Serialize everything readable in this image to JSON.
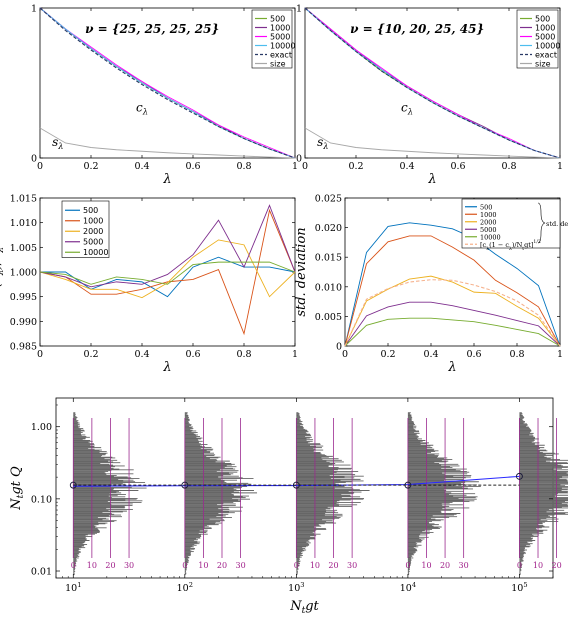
{
  "chart_data": [
    {
      "id": "p1",
      "type": "line",
      "title": "ν = {25, 25, 25, 25}",
      "xlabel": "λ",
      "ylabel": "",
      "xlim": [
        0,
        1
      ],
      "ylim": [
        0,
        1
      ],
      "x_ticks": [
        "0",
        "0.2",
        "0.4",
        "0.6",
        "0.8",
        "1"
      ],
      "y_ticks": [
        "0",
        "1"
      ],
      "grid": false,
      "legend": "top-right",
      "curve_labels": [
        "c_λ",
        "s_λ"
      ],
      "x": [
        0,
        0.1,
        0.2,
        0.3,
        0.4,
        0.5,
        0.6,
        0.7,
        0.8,
        0.9,
        1.0
      ],
      "series": [
        {
          "name": "500",
          "color": "#77ac30",
          "values": [
            1.0,
            0.86,
            0.73,
            0.61,
            0.5,
            0.4,
            0.31,
            0.21,
            0.13,
            0.06,
            0.0
          ]
        },
        {
          "name": "1000",
          "color": "#7e2f8e",
          "values": [
            1.0,
            0.86,
            0.73,
            0.61,
            0.51,
            0.4,
            0.31,
            0.22,
            0.13,
            0.06,
            0.0
          ]
        },
        {
          "name": "5000",
          "color": "#ff00ff",
          "values": [
            1.0,
            0.86,
            0.74,
            0.62,
            0.51,
            0.41,
            0.32,
            0.22,
            0.14,
            0.07,
            0.0
          ]
        },
        {
          "name": "10000",
          "color": "#4dbeee",
          "values": [
            1.0,
            0.86,
            0.73,
            0.61,
            0.5,
            0.4,
            0.31,
            0.21,
            0.13,
            0.06,
            0.0
          ]
        },
        {
          "name": "exact",
          "color": "#2a3a66",
          "dash": true,
          "values": [
            1.0,
            0.85,
            0.72,
            0.6,
            0.49,
            0.39,
            0.3,
            0.21,
            0.13,
            0.06,
            0.0
          ]
        },
        {
          "name": "size",
          "color": "#a8a8a8",
          "values": [
            0.2,
            0.1,
            0.07,
            0.055,
            0.045,
            0.035,
            0.027,
            0.02,
            0.013,
            0.006,
            0.0
          ]
        }
      ]
    },
    {
      "id": "p2",
      "type": "line",
      "title": "ν = {10, 20, 25, 45}",
      "xlabel": "λ",
      "ylabel": "",
      "xlim": [
        0,
        1
      ],
      "ylim": [
        0,
        1
      ],
      "x_ticks": [
        "0",
        "0.2",
        "0.4",
        "0.6",
        "0.8",
        "1"
      ],
      "y_ticks": [
        "0",
        "1"
      ],
      "grid": false,
      "legend": "top-right",
      "curve_labels": [
        "c_λ",
        "s_λ"
      ],
      "x": [
        0,
        0.1,
        0.2,
        0.3,
        0.4,
        0.5,
        0.6,
        0.7,
        0.8,
        0.9,
        1.0
      ],
      "series": [
        {
          "name": "500",
          "color": "#77ac30",
          "values": [
            1.0,
            0.85,
            0.71,
            0.58,
            0.47,
            0.37,
            0.28,
            0.2,
            0.12,
            0.05,
            0.0
          ]
        },
        {
          "name": "1000",
          "color": "#7e2f8e",
          "values": [
            1.0,
            0.86,
            0.72,
            0.59,
            0.48,
            0.38,
            0.29,
            0.21,
            0.12,
            0.05,
            0.0
          ]
        },
        {
          "name": "5000",
          "color": "#ff00ff",
          "values": [
            1.0,
            0.86,
            0.72,
            0.6,
            0.48,
            0.38,
            0.29,
            0.2,
            0.13,
            0.05,
            0.0
          ]
        },
        {
          "name": "10000",
          "color": "#4dbeee",
          "values": [
            1.0,
            0.85,
            0.71,
            0.59,
            0.47,
            0.37,
            0.28,
            0.2,
            0.12,
            0.05,
            0.0
          ]
        },
        {
          "name": "exact",
          "color": "#2a3a66",
          "dash": true,
          "values": [
            1.0,
            0.85,
            0.71,
            0.58,
            0.47,
            0.37,
            0.28,
            0.2,
            0.12,
            0.05,
            0.0
          ]
        },
        {
          "name": "size",
          "color": "#a8a8a8",
          "values": [
            0.2,
            0.1,
            0.07,
            0.055,
            0.045,
            0.035,
            0.027,
            0.02,
            0.013,
            0.006,
            0.0
          ]
        }
      ]
    },
    {
      "id": "p3",
      "type": "line",
      "title": "",
      "xlabel": "λ",
      "ylabel": "E(ĉ_λ)/c_λ",
      "xlim": [
        0,
        1
      ],
      "ylim": [
        0.985,
        1.015
      ],
      "x_ticks": [
        "0",
        "0.2",
        "0.4",
        "0.6",
        "0.8",
        "1"
      ],
      "y_ticks": [
        "0.985",
        "0.990",
        "0.995",
        "1.000",
        "1.005",
        "1.010",
        "1.015"
      ],
      "grid": false,
      "legend": "top-left",
      "x": [
        0,
        0.1,
        0.2,
        0.3,
        0.4,
        0.5,
        0.6,
        0.7,
        0.8,
        0.9,
        1.0
      ],
      "series": [
        {
          "name": "500",
          "color": "#0072bd",
          "values": [
            1.0,
            1.0,
            0.9965,
            0.9985,
            0.998,
            0.995,
            1.001,
            1.003,
            1.001,
            1.001,
            1.0
          ]
        },
        {
          "name": "1000",
          "color": "#d95319",
          "values": [
            1.0,
            0.999,
            0.9955,
            0.9955,
            0.9965,
            0.998,
            0.9985,
            1.0005,
            0.9875,
            1.0125,
            1.0
          ]
        },
        {
          "name": "2000",
          "color": "#edb120",
          "values": [
            1.0,
            0.9985,
            0.9965,
            0.9965,
            0.9948,
            0.9978,
            1.003,
            1.0065,
            1.0055,
            0.995,
            1.0
          ]
        },
        {
          "name": "5000",
          "color": "#7e2f8e",
          "values": [
            1.0,
            0.999,
            0.997,
            0.998,
            0.9975,
            0.9995,
            1.0035,
            1.0105,
            1.001,
            1.0135,
            1.0
          ]
        },
        {
          "name": "10000",
          "color": "#77ac30",
          "values": [
            1.0,
            0.9995,
            0.9975,
            0.999,
            0.9985,
            0.9975,
            1.0015,
            1.002,
            1.002,
            1.002,
            1.0
          ]
        }
      ]
    },
    {
      "id": "p4",
      "type": "line",
      "title": "",
      "xlabel": "λ",
      "ylabel": "std. deviation",
      "xlim": [
        0,
        1
      ],
      "ylim": [
        0,
        0.025
      ],
      "x_ticks": [
        "0",
        "0.2",
        "0.4",
        "0.6",
        "0.8",
        "1"
      ],
      "y_ticks": [
        "0",
        "0.005",
        "0.010",
        "0.015",
        "0.020",
        "0.025"
      ],
      "grid": false,
      "legend": "top-right",
      "legend_group_label": "std. dev.",
      "x": [
        0,
        0.1,
        0.2,
        0.3,
        0.4,
        0.5,
        0.6,
        0.7,
        0.8,
        0.9,
        1.0
      ],
      "series": [
        {
          "name": "500",
          "color": "#0072bd",
          "values": [
            0,
            0.0158,
            0.0202,
            0.0208,
            0.0204,
            0.0198,
            0.0182,
            0.0155,
            0.0131,
            0.0102,
            0
          ]
        },
        {
          "name": "1000",
          "color": "#d95319",
          "values": [
            0,
            0.0139,
            0.0176,
            0.0186,
            0.0186,
            0.0167,
            0.0145,
            0.0111,
            0.009,
            0.0066,
            0
          ]
        },
        {
          "name": "2000",
          "color": "#edb120",
          "values": [
            0,
            0.0076,
            0.0096,
            0.0113,
            0.0118,
            0.0108,
            0.0091,
            0.0089,
            0.0067,
            0.0047,
            0
          ]
        },
        {
          "name": "5000",
          "color": "#7e2f8e",
          "values": [
            0,
            0.0051,
            0.0066,
            0.0074,
            0.0074,
            0.0068,
            0.006,
            0.0052,
            0.0043,
            0.0034,
            0
          ]
        },
        {
          "name": "10000",
          "color": "#77ac30",
          "values": [
            0,
            0.0035,
            0.0045,
            0.0047,
            0.0047,
            0.0044,
            0.0041,
            0.0035,
            0.0028,
            0.0021,
            0
          ]
        },
        {
          "name": "[c_λ(1 − c_λ)/N_tgt]^{1/2}",
          "color": "#f6b38f",
          "dash": true,
          "values": [
            0,
            0.0079,
            0.0097,
            0.0108,
            0.0112,
            0.0111,
            0.0103,
            0.0092,
            0.0076,
            0.0052,
            0
          ]
        }
      ]
    },
    {
      "id": "p5",
      "type": "scatter",
      "title": "",
      "xlabel": "N_tgt",
      "ylabel": "N_tgt Q",
      "xscale": "log",
      "yscale": "log",
      "xlim": [
        7,
        200000
      ],
      "ylim": [
        0.008,
        2.5
      ],
      "x_ticks": [
        "10^1",
        "10^2",
        "10^3",
        "10^4",
        "10^5"
      ],
      "y_ticks": [
        "0.01",
        "0.10",
        "1.00"
      ],
      "grid": false,
      "hist_count_ticks": [
        "0",
        "10",
        "20",
        "30"
      ],
      "points": {
        "x": [
          10,
          100,
          1000,
          10000,
          100000
        ],
        "y": [
          0.155,
          0.155,
          0.155,
          0.155,
          0.205
        ]
      },
      "series": [
        {
          "name": "",
          "color": "#2a2aff",
          "values": [
            0.15,
            0.152,
            0.153,
            0.158,
            0.205
          ]
        },
        {
          "name": "",
          "color": "#222222",
          "dash": true,
          "values": [
            0.155,
            0.155,
            0.155,
            0.155,
            0.155
          ]
        }
      ],
      "histograms": {
        "center": 0.135,
        "sigma_decades": 0.42,
        "peak_count": 30
      }
    }
  ]
}
